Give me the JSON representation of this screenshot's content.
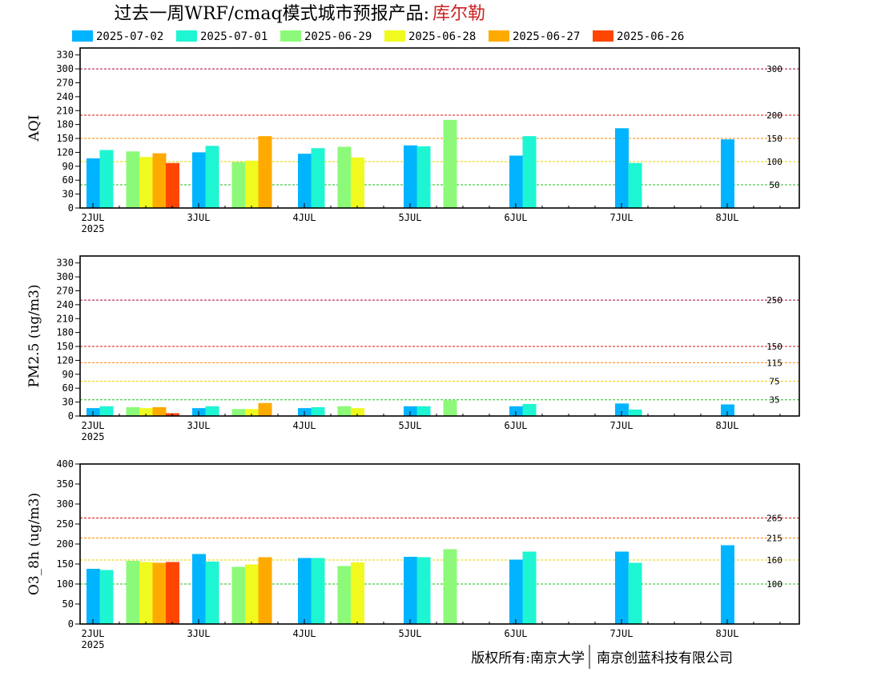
{
  "header": {
    "title": "过去一周WRF/cmaq模式城市预报产品:",
    "city": "库尔勒"
  },
  "legend": [
    {
      "label": "2025-07-02",
      "color": "#00b4ff"
    },
    {
      "label": "2025-07-01",
      "color": "#1ef5d2"
    },
    {
      "label": "2025-06-29",
      "color": "#8cfa78"
    },
    {
      "label": "2025-06-28",
      "color": "#f0fa1e"
    },
    {
      "label": "2025-06-27",
      "color": "#ffaa00"
    },
    {
      "label": "2025-06-26",
      "color": "#ff4600"
    }
  ],
  "x_axis": {
    "labels": [
      "2JUL",
      "3JUL",
      "4JUL",
      "5JUL",
      "6JUL",
      "7JUL",
      "8JUL"
    ],
    "year": "2025"
  },
  "chart_data": [
    {
      "type": "bar",
      "ylabel": "AQI",
      "ylim": [
        0,
        345
      ],
      "yticks": [
        0,
        30,
        60,
        90,
        120,
        150,
        180,
        210,
        240,
        270,
        300,
        330
      ],
      "thresholds": [
        {
          "value": 50,
          "label": "50",
          "color": "#22bb22"
        },
        {
          "value": 100,
          "label": "100",
          "color": "#e6d200"
        },
        {
          "value": 150,
          "label": "150",
          "color": "#ff8800"
        },
        {
          "value": 200,
          "label": "200",
          "color": "#dd1111"
        },
        {
          "value": 300,
          "label": "300",
          "color": "#aa0044"
        }
      ],
      "series": [
        {
          "name": "2025-07-02",
          "x": [
            0.0,
            1.0,
            2.0,
            3.0,
            4.0,
            5.0,
            6.0
          ],
          "values": [
            107,
            120,
            117,
            135,
            113,
            172,
            148
          ]
        },
        {
          "name": "2025-07-01",
          "x": [
            0.125,
            1.125,
            2.125,
            3.125,
            4.125,
            5.125
          ],
          "values": [
            125,
            134,
            129,
            133,
            155,
            97
          ]
        },
        {
          "name": "2025-06-29",
          "x": [
            0.375,
            1.375,
            2.375,
            3.375
          ],
          "values": [
            122,
            99,
            132,
            190
          ]
        },
        {
          "name": "2025-06-28",
          "x": [
            0.5,
            1.5,
            2.5
          ],
          "values": [
            110,
            102,
            109
          ]
        },
        {
          "name": "2025-06-27",
          "x": [
            0.625,
            1.625
          ],
          "values": [
            118,
            155
          ]
        },
        {
          "name": "2025-06-26",
          "x": [
            0.75
          ],
          "values": [
            97
          ]
        }
      ]
    },
    {
      "type": "bar",
      "ylabel": "PM2.5 (ug/m3)",
      "ylim": [
        0,
        345
      ],
      "yticks": [
        0,
        30,
        60,
        90,
        120,
        150,
        180,
        210,
        240,
        270,
        300,
        330
      ],
      "thresholds": [
        {
          "value": 35,
          "label": "35",
          "color": "#22bb22"
        },
        {
          "value": 75,
          "label": "75",
          "color": "#e6d200"
        },
        {
          "value": 115,
          "label": "115",
          "color": "#ff8800"
        },
        {
          "value": 150,
          "label": "150",
          "color": "#dd1111"
        },
        {
          "value": 250,
          "label": "250",
          "color": "#aa0044"
        }
      ],
      "series": [
        {
          "name": "2025-07-02",
          "x": [
            0.0,
            1.0,
            2.0,
            3.0,
            4.0,
            5.0,
            6.0
          ],
          "values": [
            17,
            17,
            17,
            21,
            21,
            27,
            25
          ]
        },
        {
          "name": "2025-07-01",
          "x": [
            0.125,
            1.125,
            2.125,
            3.125,
            4.125,
            5.125
          ],
          "values": [
            21,
            21,
            19,
            21,
            26,
            14
          ]
        },
        {
          "name": "2025-06-29",
          "x": [
            0.375,
            1.375,
            2.375,
            3.375
          ],
          "values": [
            19,
            15,
            21,
            34
          ]
        },
        {
          "name": "2025-06-28",
          "x": [
            0.5,
            1.5,
            2.5
          ],
          "values": [
            17,
            15,
            17
          ]
        },
        {
          "name": "2025-06-27",
          "x": [
            0.625,
            1.625
          ],
          "values": [
            19,
            28
          ]
        },
        {
          "name": "2025-06-26",
          "x": [
            0.75
          ],
          "values": [
            6
          ]
        }
      ]
    },
    {
      "type": "bar",
      "ylabel": "O3_8h (ug/m3)",
      "ylim": [
        0,
        400
      ],
      "yticks": [
        0,
        50,
        100,
        150,
        200,
        250,
        300,
        350,
        400
      ],
      "thresholds": [
        {
          "value": 100,
          "label": "100",
          "color": "#22bb22"
        },
        {
          "value": 160,
          "label": "160",
          "color": "#e6d200"
        },
        {
          "value": 215,
          "label": "215",
          "color": "#ff8800"
        },
        {
          "value": 265,
          "label": "265",
          "color": "#dd1111"
        }
      ],
      "series": [
        {
          "name": "2025-07-02",
          "x": [
            0.0,
            1.0,
            2.0,
            3.0,
            4.0,
            5.0,
            6.0
          ],
          "values": [
            138,
            175,
            165,
            168,
            161,
            181,
            197
          ]
        },
        {
          "name": "2025-07-01",
          "x": [
            0.125,
            1.125,
            2.125,
            3.125,
            4.125,
            5.125
          ],
          "values": [
            135,
            156,
            165,
            167,
            181,
            153
          ]
        },
        {
          "name": "2025-06-29",
          "x": [
            0.375,
            1.375,
            2.375,
            3.375
          ],
          "values": [
            158,
            143,
            145,
            187
          ]
        },
        {
          "name": "2025-06-28",
          "x": [
            0.5,
            1.5,
            2.5
          ],
          "values": [
            155,
            149,
            154
          ]
        },
        {
          "name": "2025-06-27",
          "x": [
            0.625,
            1.625
          ],
          "values": [
            153,
            167
          ]
        },
        {
          "name": "2025-06-26",
          "x": [
            0.75
          ],
          "values": [
            155
          ]
        }
      ]
    }
  ],
  "footer": {
    "left": "版权所有:南京大学",
    "right": "南京创蓝科技有限公司"
  }
}
